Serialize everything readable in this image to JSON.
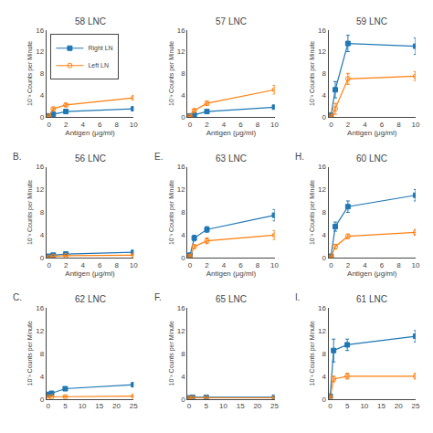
{
  "chart_data": [
    {
      "type": "line",
      "title": "58 LNC",
      "x": [
        0,
        0.5,
        2,
        10
      ],
      "series": [
        {
          "name": "Right LN",
          "values": [
            0.2,
            0.5,
            1.0,
            1.5
          ],
          "yerr": [
            0.05,
            0.1,
            0.2,
            0.2
          ],
          "marker": "square",
          "line_style": "solid"
        },
        {
          "name": "Left LN",
          "values": [
            0.1,
            1.5,
            2.2,
            3.5
          ],
          "yerr": [
            0.05,
            0.2,
            0.3,
            0.4
          ],
          "marker": "open circle",
          "line_style": "solid"
        }
      ],
      "xlim": [
        -0.3,
        10
      ],
      "xticks": [
        0,
        2,
        4,
        6,
        8,
        10
      ],
      "ylim": [
        0,
        16
      ],
      "yticks": [
        0,
        4,
        8,
        12,
        16
      ],
      "xlabel": "Antigen (μg/ml)",
      "ylabel": "10⁻³ Counts per Minute",
      "grid": false,
      "legend": "upper left"
    },
    {
      "type": "line",
      "title": "57 LNC",
      "x": [
        0,
        0.5,
        2,
        10
      ],
      "series": [
        {
          "name": "Right LN",
          "values": [
            0.2,
            0.4,
            1.0,
            1.8
          ],
          "yerr": [
            0.05,
            0.1,
            0.15,
            0.3
          ],
          "marker": "square",
          "line_style": "solid"
        },
        {
          "name": "Left LN",
          "values": [
            0.1,
            1.2,
            2.5,
            5.0
          ],
          "yerr": [
            0.05,
            0.2,
            0.4,
            0.8
          ],
          "marker": "open circle",
          "line_style": "solid"
        }
      ],
      "xlim": [
        -0.3,
        10
      ],
      "xticks": [
        0,
        2,
        4,
        6,
        8,
        10
      ],
      "ylim": [
        0,
        16
      ],
      "yticks": [
        0,
        4,
        8,
        12,
        16
      ],
      "xlabel": "Antigen (μg/ml)",
      "ylabel": "10⁻³ Counts per Minute",
      "grid": false
    },
    {
      "type": "line",
      "title": "59 LNC",
      "x": [
        0,
        0.5,
        2,
        10
      ],
      "series": [
        {
          "name": "Right LN",
          "values": [
            0.3,
            5.0,
            13.5,
            13.0
          ],
          "yerr": [
            0.1,
            1.5,
            1.5,
            1.5
          ],
          "marker": "square",
          "line_style": "solid"
        },
        {
          "name": "Left LN",
          "values": [
            0.1,
            1.5,
            7.0,
            7.5
          ],
          "yerr": [
            0.05,
            1.0,
            1.0,
            0.8
          ],
          "marker": "open circle",
          "line_style": "solid"
        }
      ],
      "xlim": [
        -0.3,
        10
      ],
      "xticks": [
        0,
        2,
        4,
        6,
        8,
        10
      ],
      "ylim": [
        0,
        16
      ],
      "yticks": [
        0,
        4,
        8,
        12,
        16
      ],
      "xlabel": "Antigen (μg/ml)",
      "ylabel": "10⁻³ Counts per Minute",
      "grid": false
    },
    {
      "type": "line",
      "title": "56 LNC",
      "x": [
        0,
        0.5,
        2,
        10
      ],
      "series": [
        {
          "name": "Right LN",
          "values": [
            0.3,
            0.5,
            0.7,
            1.0
          ],
          "yerr": [
            0.05,
            0.1,
            0.1,
            0.15
          ],
          "marker": "square",
          "line_style": "solid"
        },
        {
          "name": "Left LN",
          "values": [
            0.1,
            0.3,
            0.4,
            0.5
          ],
          "yerr": [
            0.05,
            0.05,
            0.05,
            0.1
          ],
          "marker": "open circle",
          "line_style": "solid"
        }
      ],
      "xlim": [
        -0.3,
        10
      ],
      "xticks": [
        0,
        2,
        4,
        6,
        8,
        10
      ],
      "ylim": [
        0,
        16
      ],
      "yticks": [
        0,
        4,
        8,
        12,
        16
      ],
      "xlabel": "Antigen (μg/ml)",
      "ylabel": "10⁻³ Counts per Minute",
      "grid": false,
      "annotations": [
        "B."
      ]
    },
    {
      "type": "line",
      "title": "63 LNC",
      "x": [
        0,
        0.5,
        2,
        10
      ],
      "series": [
        {
          "name": "Right LN",
          "values": [
            0.5,
            3.5,
            5.0,
            7.5
          ],
          "yerr": [
            0.1,
            0.5,
            0.5,
            1.0
          ],
          "marker": "square",
          "line_style": "solid"
        },
        {
          "name": "Left LN",
          "values": [
            0.3,
            2.0,
            3.0,
            4.0
          ],
          "yerr": [
            0.1,
            0.3,
            0.5,
            0.8
          ],
          "marker": "open circle",
          "line_style": "solid"
        }
      ],
      "xlim": [
        -0.3,
        10
      ],
      "xticks": [
        0,
        2,
        4,
        6,
        8,
        10
      ],
      "ylim": [
        0,
        16
      ],
      "yticks": [
        0,
        4,
        8,
        12,
        16
      ],
      "xlabel": "Antigen (μg/ml)",
      "ylabel": "10⁻³ Counts per Minute",
      "grid": false,
      "annotations": [
        "E."
      ]
    },
    {
      "type": "line",
      "title": "60 LNC",
      "x": [
        0,
        0.5,
        2,
        10
      ],
      "series": [
        {
          "name": "Right LN",
          "values": [
            0.3,
            5.5,
            9.0,
            11.0
          ],
          "yerr": [
            0.1,
            0.8,
            1.0,
            1.0
          ],
          "marker": "square",
          "line_style": "solid"
        },
        {
          "name": "Left LN",
          "values": [
            0.2,
            2.0,
            3.8,
            4.5
          ],
          "yerr": [
            0.05,
            0.4,
            0.4,
            0.5
          ],
          "marker": "open circle",
          "line_style": "solid"
        }
      ],
      "xlim": [
        -0.3,
        10
      ],
      "xticks": [
        0,
        2,
        4,
        6,
        8,
        10
      ],
      "ylim": [
        0,
        16
      ],
      "yticks": [
        0,
        4,
        8,
        12,
        16
      ],
      "xlabel": "Antigen (μg/ml)",
      "ylabel": "10⁻³ Counts per Minute",
      "grid": false,
      "annotations": [
        "H."
      ]
    },
    {
      "type": "line",
      "title": "62 LNC",
      "x": [
        0,
        1,
        5,
        25
      ],
      "series": [
        {
          "name": "Right LN",
          "values": [
            0.8,
            1.0,
            1.8,
            2.5
          ],
          "yerr": [
            0.1,
            0.1,
            0.2,
            0.3
          ],
          "marker": "square",
          "line_style": "solid"
        },
        {
          "name": "Left LN",
          "values": [
            0.3,
            0.4,
            0.4,
            0.5
          ],
          "yerr": [
            0.05,
            0.05,
            0.1,
            0.1
          ],
          "marker": "open circle",
          "line_style": "solid"
        }
      ],
      "xlim": [
        -0.5,
        25
      ],
      "xticks": [
        0,
        5,
        10,
        15,
        20,
        25
      ],
      "ylim": [
        0,
        16
      ],
      "yticks": [
        0,
        4,
        8,
        12,
        16
      ],
      "ylabel": "10⁻³ Counts per Minute",
      "grid": false,
      "annotations": [
        "C."
      ]
    },
    {
      "type": "line",
      "title": "65 LNC",
      "x": [
        0,
        1,
        5,
        25
      ],
      "series": [
        {
          "name": "Right LN",
          "values": [
            0.2,
            0.3,
            0.3,
            0.3
          ],
          "yerr": [
            0.05,
            0.05,
            0.05,
            0.05
          ],
          "marker": "square",
          "line_style": "solid"
        },
        {
          "name": "Left LN",
          "values": [
            0.1,
            0.2,
            0.2,
            0.2
          ],
          "yerr": [
            0.03,
            0.03,
            0.03,
            0.03
          ],
          "marker": "open circle",
          "line_style": "solid"
        }
      ],
      "xlim": [
        -0.5,
        25
      ],
      "xticks": [
        0,
        5,
        10,
        15,
        20,
        25
      ],
      "ylim": [
        0,
        16
      ],
      "yticks": [
        0,
        4,
        8,
        12,
        16
      ],
      "ylabel": "10⁻³ Counts per Minute",
      "grid": false,
      "annotations": [
        "F."
      ]
    },
    {
      "type": "line",
      "title": "61 LNC",
      "x": [
        0,
        1,
        5,
        25
      ],
      "series": [
        {
          "name": "Right LN",
          "values": [
            0.5,
            8.5,
            9.5,
            11.0
          ],
          "yerr": [
            0.1,
            2.0,
            1.0,
            1.0
          ],
          "marker": "square",
          "line_style": "solid"
        },
        {
          "name": "Left LN",
          "values": [
            0.2,
            3.5,
            4.0,
            4.0
          ],
          "yerr": [
            0.05,
            0.5,
            0.5,
            0.5
          ],
          "marker": "open circle",
          "line_style": "solid"
        }
      ],
      "xlim": [
        -0.5,
        25
      ],
      "xticks": [
        0,
        5,
        10,
        15,
        20,
        25
      ],
      "ylim": [
        0,
        16
      ],
      "yticks": [
        0,
        4,
        8,
        12,
        16
      ],
      "ylabel": "10⁻³ Counts per Minute",
      "grid": false,
      "annotations": [
        "I."
      ]
    }
  ]
}
